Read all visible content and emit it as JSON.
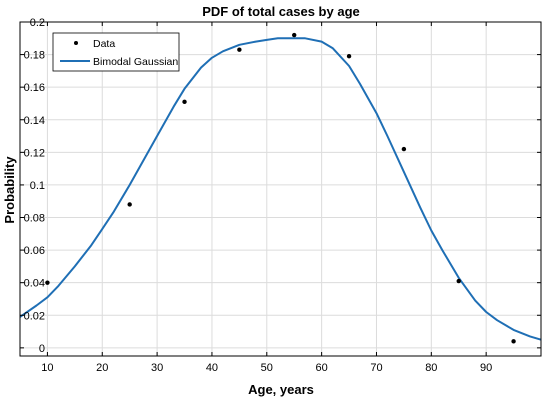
{
  "chart_data": {
    "type": "line",
    "title": "PDF of total cases by age",
    "xlabel": "Age, years",
    "ylabel": "Probability",
    "xlim": [
      5,
      100
    ],
    "ylim": [
      -0.005,
      0.2
    ],
    "xticks": [
      10,
      20,
      30,
      40,
      50,
      60,
      70,
      80,
      90
    ],
    "xtick_labels": [
      "10",
      "20",
      "30",
      "40",
      "50",
      "60",
      "70",
      "80",
      "90"
    ],
    "yticks": [
      0,
      0.02,
      0.04,
      0.06,
      0.08,
      0.1,
      0.12,
      0.14,
      0.16,
      0.18,
      0.2
    ],
    "ytick_labels": [
      "0",
      "0.02",
      "0.04",
      "0.06",
      "0.08",
      "0.1",
      "0.12",
      "0.14",
      "0.16",
      "0.18",
      "0.2"
    ],
    "grid": true,
    "legend_position": "top-left",
    "series": [
      {
        "name": "Data",
        "kind": "scatter",
        "color": "#000000",
        "x": [
          10,
          25,
          35,
          45,
          55,
          65,
          75,
          85,
          95
        ],
        "y": [
          0.04,
          0.088,
          0.151,
          0.183,
          0.192,
          0.179,
          0.122,
          0.041,
          0.004
        ]
      },
      {
        "name": "Bimodal Gaussian",
        "kind": "line",
        "color": "#1f6fb5",
        "x": [
          5,
          8,
          10,
          12,
          15,
          18,
          20,
          22,
          25,
          28,
          30,
          33,
          35,
          38,
          40,
          42,
          45,
          48,
          50,
          52,
          55,
          57,
          60,
          62,
          65,
          67,
          70,
          72,
          75,
          78,
          80,
          82,
          85,
          88,
          90,
          92,
          95,
          98,
          100
        ],
        "y": [
          0.019,
          0.026,
          0.031,
          0.038,
          0.05,
          0.063,
          0.073,
          0.083,
          0.1,
          0.118,
          0.13,
          0.148,
          0.159,
          0.172,
          0.178,
          0.182,
          0.186,
          0.188,
          0.189,
          0.19,
          0.19,
          0.19,
          0.188,
          0.184,
          0.173,
          0.162,
          0.144,
          0.13,
          0.108,
          0.086,
          0.072,
          0.06,
          0.043,
          0.029,
          0.022,
          0.017,
          0.011,
          0.007,
          0.005
        ]
      }
    ]
  }
}
